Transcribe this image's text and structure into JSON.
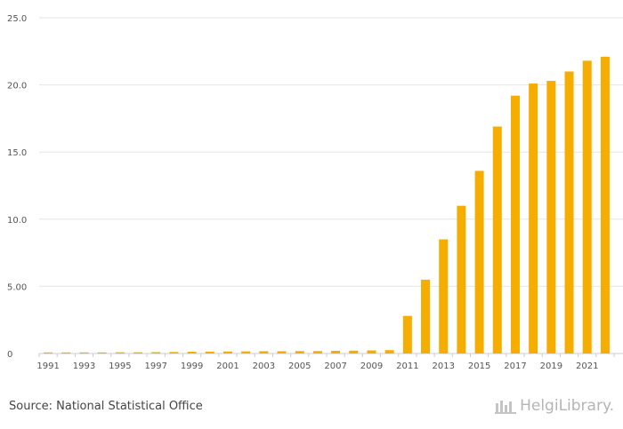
{
  "chart_data": {
    "type": "bar",
    "categories": [
      "1991",
      "1992",
      "1993",
      "1994",
      "1995",
      "1996",
      "1997",
      "1998",
      "1999",
      "2000",
      "2001",
      "2002",
      "2003",
      "2004",
      "2005",
      "2006",
      "2007",
      "2008",
      "2009",
      "2010",
      "2011",
      "2012",
      "2013",
      "2014",
      "2015",
      "2016",
      "2017",
      "2018",
      "2019",
      "2020",
      "2021",
      "2022"
    ],
    "values": [
      0.08,
      0.08,
      0.08,
      0.08,
      0.09,
      0.09,
      0.1,
      0.11,
      0.13,
      0.14,
      0.15,
      0.16,
      0.17,
      0.17,
      0.18,
      0.18,
      0.2,
      0.21,
      0.23,
      0.25,
      2.8,
      5.5,
      8.5,
      11.0,
      13.6,
      16.9,
      19.2,
      20.1,
      20.3,
      21.0,
      21.8,
      22.1
    ],
    "x_tick_labels": [
      "1991",
      "1993",
      "1995",
      "1997",
      "1999",
      "2001",
      "2003",
      "2005",
      "2007",
      "2009",
      "2011",
      "2013",
      "2015",
      "2017",
      "2019",
      "2021"
    ],
    "y_ticks": [
      "0",
      "5.00",
      "10.0",
      "15.0",
      "20.0",
      "25.0"
    ],
    "y_tick_values": [
      0,
      5,
      10,
      15,
      20,
      25
    ],
    "ylim": [
      0,
      25
    ],
    "grid": true,
    "bar_color": "#f5ad00",
    "title": "",
    "xlabel": "",
    "ylabel": ""
  },
  "footer": {
    "source": "Source: National Statistical Office",
    "brand": "HelgiLibrary."
  },
  "colors": {
    "grid": "#e6e6e6",
    "axis_text": "#555555",
    "bar": "#f5ad00"
  }
}
